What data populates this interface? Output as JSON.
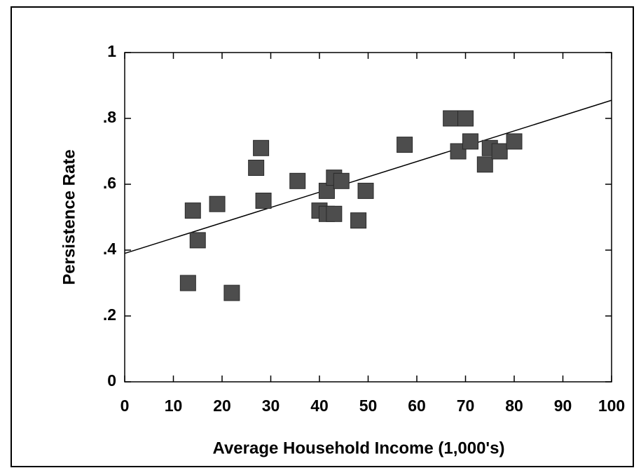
{
  "chart_data": {
    "type": "scatter",
    "x_label": "Average Household Income (1,000's)",
    "y_label": "Persistence Rate",
    "x": [
      14,
      15,
      13,
      19,
      22,
      27,
      28,
      28.5,
      35.5,
      40,
      41.5,
      41.5,
      43,
      43,
      44.5,
      48,
      49.5,
      57.5,
      67,
      70,
      68.5,
      71,
      74,
      75,
      77,
      80
    ],
    "values": [
      0.52,
      0.43,
      0.3,
      0.54,
      0.27,
      0.65,
      0.71,
      0.55,
      0.61,
      0.52,
      0.58,
      0.51,
      0.51,
      0.62,
      0.61,
      0.49,
      0.58,
      0.72,
      0.8,
      0.8,
      0.7,
      0.73,
      0.66,
      0.71,
      0.7,
      0.73
    ],
    "color": "#4d4d4d",
    "trend_line": {
      "x": [
        0,
        100
      ],
      "values": [
        0.39,
        0.855
      ],
      "color": "#000000"
    },
    "xlim": [
      0,
      100
    ],
    "xticks": [
      0,
      10,
      20,
      30,
      40,
      50,
      60,
      70,
      80,
      90,
      100
    ],
    "ylim": [
      0,
      1
    ],
    "yticks": [
      0,
      {
        "value": 0.2,
        "label": ".2"
      },
      {
        "value": 0.4,
        "label": ".4"
      },
      {
        "value": 0.6,
        "label": ".6"
      },
      {
        "value": 0.8,
        "label": ".8"
      },
      1
    ]
  }
}
